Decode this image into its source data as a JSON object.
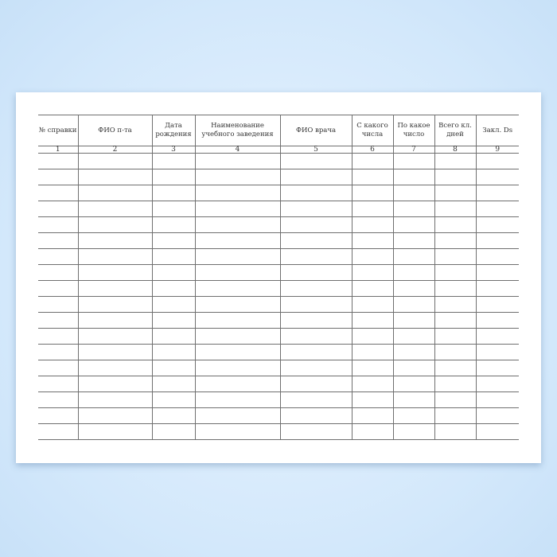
{
  "table": {
    "headers": [
      "№ справки",
      "ФИО п-та",
      "Дата рождения",
      "Наименование учебного заведения",
      "ФИО врача",
      "С какого числа",
      "По какое число",
      "Всего кл. дней",
      "Закл. Ds"
    ],
    "column_numbers": [
      "1",
      "2",
      "3",
      "4",
      "5",
      "6",
      "7",
      "8",
      "9"
    ],
    "empty_rows": 18
  }
}
